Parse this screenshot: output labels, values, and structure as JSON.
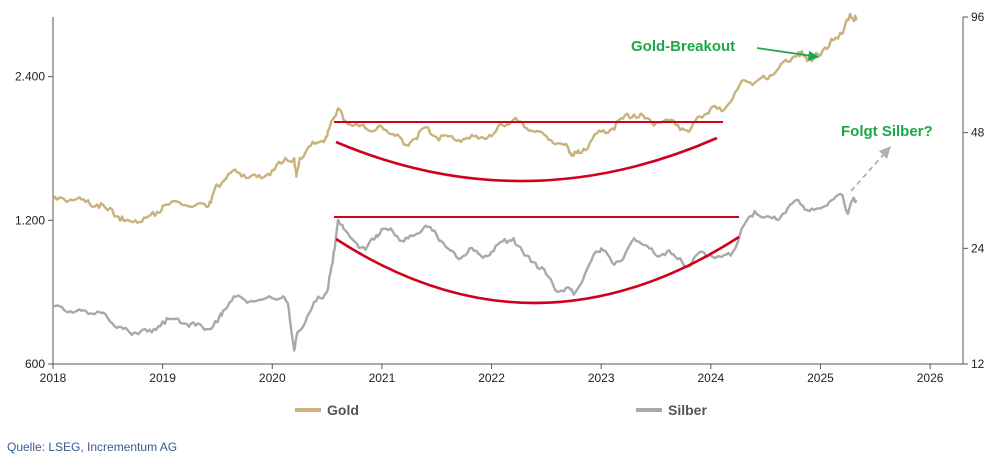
{
  "colors": {
    "gold": "#c9b27c",
    "silver": "#a9a9a9",
    "annotation_text": "#1ea64a",
    "pattern": "#d0021b",
    "axis": "#555555",
    "source": "#3a5a8a"
  },
  "source": "Quelle: LSEG, Incrementum AG",
  "legend": [
    {
      "name": "Gold"
    },
    {
      "name": "Silber"
    }
  ],
  "annotations": {
    "gold_breakout": "Gold-Breakout",
    "silver_question": "Folgt Silber?"
  },
  "chart_data": {
    "type": "line",
    "x_range": [
      2018,
      2026.3
    ],
    "x_ticks": [
      "2018",
      "2019",
      "2020",
      "2021",
      "2022",
      "2023",
      "2024",
      "2025",
      "2026"
    ],
    "y_left": {
      "scale": "log",
      "range": [
        600,
        3200
      ],
      "ticks": [
        "600",
        "1.200",
        "2.400"
      ],
      "tick_values": [
        600,
        1200,
        2400
      ]
    },
    "y_right": {
      "scale": "log",
      "range": [
        12,
        96
      ],
      "ticks": [
        "12",
        "24",
        "48",
        "96"
      ],
      "tick_values": [
        12,
        24,
        48,
        96
      ]
    },
    "series": [
      {
        "name": "Gold",
        "axis": "left",
        "points": [
          [
            2018.0,
            1320
          ],
          [
            2018.1,
            1330
          ],
          [
            2018.2,
            1325
          ],
          [
            2018.3,
            1310
          ],
          [
            2018.4,
            1295
          ],
          [
            2018.5,
            1260
          ],
          [
            2018.6,
            1220
          ],
          [
            2018.65,
            1195
          ],
          [
            2018.75,
            1200
          ],
          [
            2018.85,
            1215
          ],
          [
            2018.95,
            1250
          ],
          [
            2019.0,
            1285
          ],
          [
            2019.15,
            1310
          ],
          [
            2019.3,
            1290
          ],
          [
            2019.4,
            1280
          ],
          [
            2019.45,
            1340
          ],
          [
            2019.5,
            1420
          ],
          [
            2019.6,
            1500
          ],
          [
            2019.7,
            1510
          ],
          [
            2019.8,
            1480
          ],
          [
            2019.9,
            1470
          ],
          [
            2020.0,
            1530
          ],
          [
            2020.1,
            1590
          ],
          [
            2020.2,
            1620
          ],
          [
            2020.22,
            1480
          ],
          [
            2020.25,
            1620
          ],
          [
            2020.35,
            1720
          ],
          [
            2020.45,
            1760
          ],
          [
            2020.5,
            1800
          ],
          [
            2020.55,
            1950
          ],
          [
            2020.6,
            2060
          ],
          [
            2020.65,
            1950
          ],
          [
            2020.75,
            1900
          ],
          [
            2020.85,
            1870
          ],
          [
            2020.95,
            1860
          ],
          [
            2021.0,
            1880
          ],
          [
            2021.1,
            1820
          ],
          [
            2021.2,
            1730
          ],
          [
            2021.3,
            1780
          ],
          [
            2021.4,
            1880
          ],
          [
            2021.5,
            1790
          ],
          [
            2021.6,
            1800
          ],
          [
            2021.7,
            1770
          ],
          [
            2021.8,
            1780
          ],
          [
            2021.9,
            1790
          ],
          [
            2022.0,
            1800
          ],
          [
            2022.1,
            1900
          ],
          [
            2022.2,
            1950
          ],
          [
            2022.3,
            1880
          ],
          [
            2022.4,
            1840
          ],
          [
            2022.5,
            1800
          ],
          [
            2022.6,
            1740
          ],
          [
            2022.7,
            1700
          ],
          [
            2022.75,
            1640
          ],
          [
            2022.8,
            1660
          ],
          [
            2022.9,
            1750
          ],
          [
            2023.0,
            1840
          ],
          [
            2023.1,
            1870
          ],
          [
            2023.2,
            1960
          ],
          [
            2023.3,
            2000
          ],
          [
            2023.4,
            1960
          ],
          [
            2023.5,
            1920
          ],
          [
            2023.6,
            1950
          ],
          [
            2023.7,
            1900
          ],
          [
            2023.8,
            1840
          ],
          [
            2023.9,
            1980
          ],
          [
            2024.0,
            2060
          ],
          [
            2024.1,
            2030
          ],
          [
            2024.2,
            2160
          ],
          [
            2024.3,
            2360
          ],
          [
            2024.4,
            2330
          ],
          [
            2024.5,
            2380
          ],
          [
            2024.6,
            2470
          ],
          [
            2024.7,
            2580
          ],
          [
            2024.8,
            2700
          ],
          [
            2024.85,
            2650
          ],
          [
            2024.9,
            2620
          ],
          [
            2025.0,
            2660
          ],
          [
            2025.1,
            2880
          ],
          [
            2025.2,
            2950
          ],
          [
            2025.27,
            3250
          ],
          [
            2025.33,
            3150
          ]
        ]
      },
      {
        "name": "Silber",
        "axis": "right",
        "points": [
          [
            2018.0,
            17.0
          ],
          [
            2018.1,
            16.6
          ],
          [
            2018.2,
            16.4
          ],
          [
            2018.3,
            16.5
          ],
          [
            2018.4,
            16.4
          ],
          [
            2018.5,
            15.8
          ],
          [
            2018.6,
            15.0
          ],
          [
            2018.7,
            14.5
          ],
          [
            2018.8,
            14.6
          ],
          [
            2018.9,
            14.5
          ],
          [
            2019.0,
            15.5
          ],
          [
            2019.1,
            15.7
          ],
          [
            2019.2,
            15.3
          ],
          [
            2019.3,
            15.1
          ],
          [
            2019.4,
            14.8
          ],
          [
            2019.5,
            15.4
          ],
          [
            2019.55,
            16.5
          ],
          [
            2019.65,
            18.0
          ],
          [
            2019.75,
            17.6
          ],
          [
            2019.85,
            17.5
          ],
          [
            2020.0,
            17.8
          ],
          [
            2020.1,
            18.0
          ],
          [
            2020.15,
            16.8
          ],
          [
            2020.2,
            13.0
          ],
          [
            2020.23,
            14.5
          ],
          [
            2020.3,
            15.4
          ],
          [
            2020.4,
            17.5
          ],
          [
            2020.5,
            18.5
          ],
          [
            2020.55,
            22.0
          ],
          [
            2020.6,
            28.5
          ],
          [
            2020.65,
            27.0
          ],
          [
            2020.75,
            25.0
          ],
          [
            2020.85,
            23.8
          ],
          [
            2020.95,
            26.0
          ],
          [
            2021.0,
            27.0
          ],
          [
            2021.1,
            26.5
          ],
          [
            2021.2,
            25.0
          ],
          [
            2021.3,
            26.0
          ],
          [
            2021.4,
            27.5
          ],
          [
            2021.5,
            26.0
          ],
          [
            2021.6,
            24.0
          ],
          [
            2021.7,
            22.5
          ],
          [
            2021.8,
            24.0
          ],
          [
            2021.9,
            23.0
          ],
          [
            2022.0,
            23.5
          ],
          [
            2022.1,
            25.0
          ],
          [
            2022.2,
            25.5
          ],
          [
            2022.3,
            23.0
          ],
          [
            2022.4,
            22.0
          ],
          [
            2022.5,
            20.5
          ],
          [
            2022.6,
            18.5
          ],
          [
            2022.7,
            19.0
          ],
          [
            2022.75,
            18.2
          ],
          [
            2022.85,
            20.5
          ],
          [
            2022.95,
            23.5
          ],
          [
            2023.0,
            24.0
          ],
          [
            2023.1,
            22.0
          ],
          [
            2023.2,
            22.5
          ],
          [
            2023.3,
            25.5
          ],
          [
            2023.4,
            24.5
          ],
          [
            2023.5,
            23.0
          ],
          [
            2023.6,
            23.5
          ],
          [
            2023.7,
            22.5
          ],
          [
            2023.8,
            21.5
          ],
          [
            2023.9,
            23.5
          ],
          [
            2024.0,
            23.0
          ],
          [
            2024.1,
            22.8
          ],
          [
            2024.2,
            23.5
          ],
          [
            2024.3,
            27.5
          ],
          [
            2024.4,
            30.0
          ],
          [
            2024.5,
            29.0
          ],
          [
            2024.6,
            28.5
          ],
          [
            2024.7,
            30.5
          ],
          [
            2024.8,
            32.0
          ],
          [
            2024.9,
            30.0
          ],
          [
            2025.0,
            30.5
          ],
          [
            2025.1,
            32.0
          ],
          [
            2025.2,
            33.0
          ],
          [
            2025.25,
            29.5
          ],
          [
            2025.3,
            32.5
          ],
          [
            2025.33,
            32.0
          ]
        ]
      }
    ]
  }
}
